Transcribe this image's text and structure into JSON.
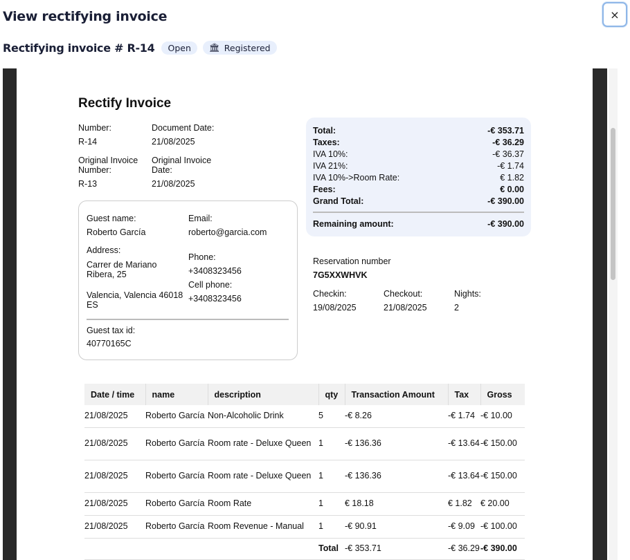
{
  "header": {
    "title": "View rectifying invoice",
    "close_label": "×",
    "subtitle": "Rectifying invoice # R-14",
    "status_badge": "Open",
    "registered_badge": "Registered"
  },
  "invoice": {
    "title": "Rectify Invoice",
    "number_label": "Number:",
    "number": "R-14",
    "doc_date_label": "Document Date:",
    "doc_date": "21/08/2025",
    "orig_number_label": "Original Invoice Number:",
    "orig_number": "R-13",
    "orig_date_label": "Original Invoice Date:",
    "orig_date": "21/08/2025",
    "guest": {
      "name_label": "Guest name:",
      "name": "Roberto García",
      "email_label": "Email:",
      "email": "roberto@garcia.com",
      "address_label": "Address:",
      "address1": "Carrer de Mariano Ribera, 25",
      "address2": "Valencia, Valencia 46018 ES",
      "phone_label": "Phone:",
      "phone": "+3408323456",
      "cell_label": "Cell phone:",
      "cell": "+3408323456",
      "tax_id_label": "Guest tax id:",
      "tax_id": "40770165C"
    },
    "summary": [
      {
        "label": "Total:",
        "value": "-€ 353.71",
        "bold": true
      },
      {
        "label": "Taxes:",
        "value": "-€ 36.29",
        "bold": true
      },
      {
        "label": "IVA 10%:",
        "value": "-€ 36.37",
        "bold": false
      },
      {
        "label": "IVA 21%:",
        "value": "-€ 1.74",
        "bold": false
      },
      {
        "label": "IVA 10%->Room Rate:",
        "value": "€ 1.82",
        "bold": false
      },
      {
        "label": "Fees:",
        "value": "€ 0.00",
        "bold": true
      },
      {
        "label": "Grand Total:",
        "value": "-€ 390.00",
        "bold": true
      }
    ],
    "remaining_label": "Remaining amount:",
    "remaining": "-€ 390.00",
    "reservation_label": "Reservation number",
    "reservation": "7G5XXWHVK",
    "checkin_label": "Checkin:",
    "checkin": "19/08/2025",
    "checkout_label": "Checkout:",
    "checkout": "21/08/2025",
    "nights_label": "Nights:",
    "nights": "2"
  },
  "table": {
    "columns": [
      "Date / time",
      "name",
      "description",
      "qty",
      "Transaction Amount",
      "Tax",
      "Gross"
    ],
    "rows": [
      [
        "21/08/2025",
        "Roberto García",
        "Non-Alcoholic Drink",
        "5",
        "-€ 8.26",
        "-€ 1.74",
        "-€ 10.00"
      ],
      [
        "21/08/2025",
        "Roberto García",
        "Room rate - Deluxe Queen",
        "1",
        "-€ 136.36",
        "-€ 13.64",
        "-€ 150.00"
      ],
      [
        "21/08/2025",
        "Roberto García",
        "Room rate - Deluxe Queen",
        "1",
        "-€ 136.36",
        "-€ 13.64",
        "-€ 150.00"
      ],
      [
        "21/08/2025",
        "Roberto García",
        "Room Rate",
        "1",
        "€ 18.18",
        "€ 1.82",
        "€ 20.00"
      ],
      [
        "21/08/2025",
        "Roberto García",
        "Room Revenue - Manual",
        "1",
        "-€ 90.91",
        "-€ 9.09",
        "-€ 100.00"
      ]
    ],
    "total": {
      "label": "Total",
      "amount": "-€ 353.71",
      "tax": "-€ 36.29",
      "gross": "-€ 390.00"
    }
  }
}
